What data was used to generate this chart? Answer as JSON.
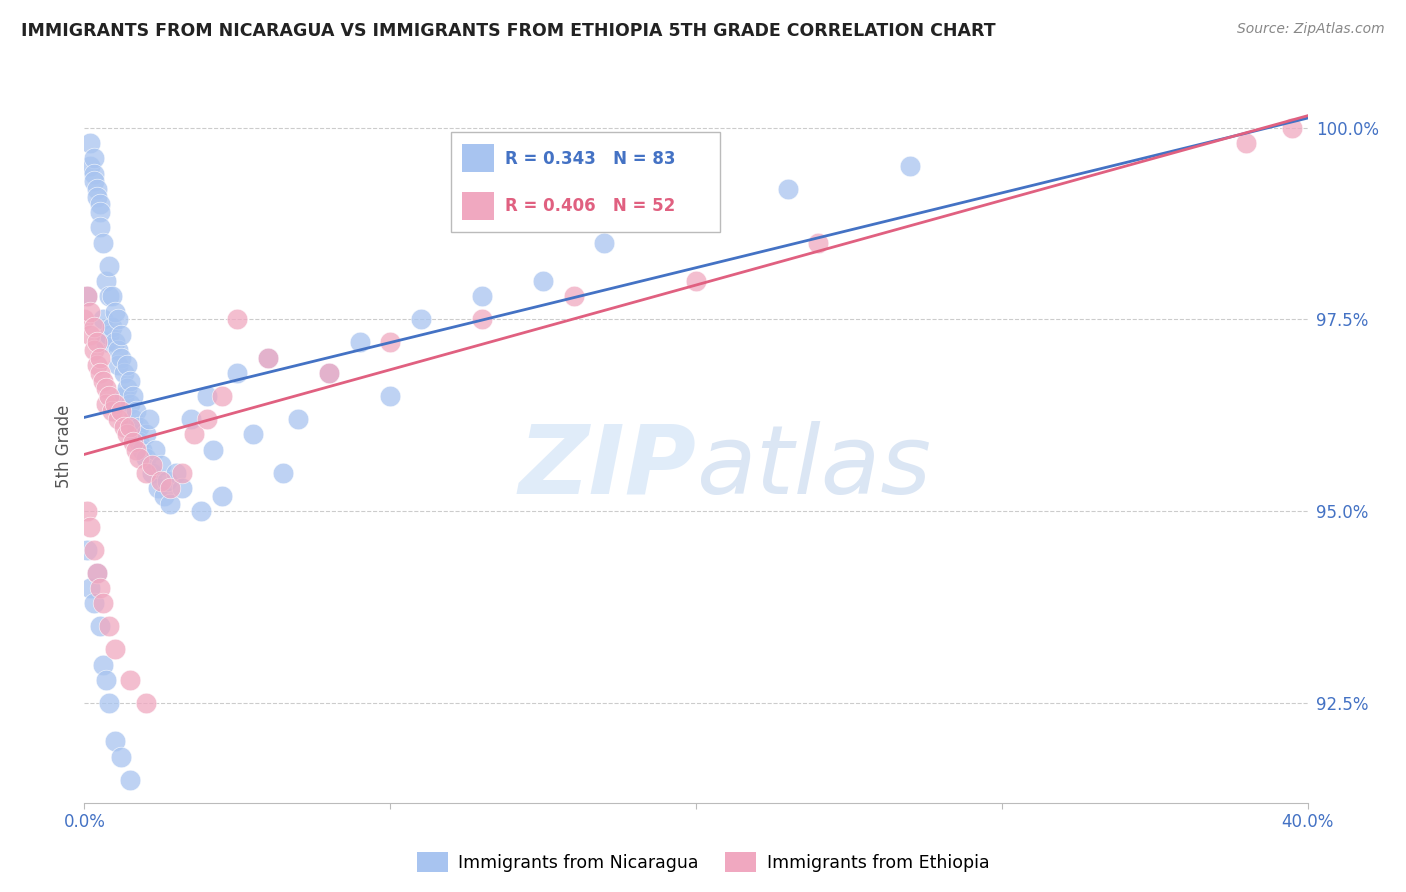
{
  "title": "IMMIGRANTS FROM NICARAGUA VS IMMIGRANTS FROM ETHIOPIA 5TH GRADE CORRELATION CHART",
  "source": "Source: ZipAtlas.com",
  "ylabel": "5th Grade",
  "xmin": 0.0,
  "xmax": 0.4,
  "ymin": 91.2,
  "ymax": 100.5,
  "legend_r1_color": "#4472c4",
  "legend_r2_color": "#e06080",
  "color_nicaragua": "#a8c4f0",
  "color_ethiopia": "#f0a8c0",
  "color_line_nicaragua": "#4472c4",
  "color_line_ethiopia": "#e06080",
  "color_axis_ticks": "#4472c4",
  "watermark_color": "#dae8f8",
  "nicaragua_x": [
    0.001,
    0.002,
    0.002,
    0.003,
    0.003,
    0.003,
    0.004,
    0.004,
    0.005,
    0.005,
    0.005,
    0.006,
    0.006,
    0.007,
    0.007,
    0.008,
    0.008,
    0.008,
    0.009,
    0.009,
    0.01,
    0.01,
    0.011,
    0.011,
    0.011,
    0.012,
    0.012,
    0.013,
    0.013,
    0.014,
    0.014,
    0.015,
    0.015,
    0.016,
    0.016,
    0.017,
    0.017,
    0.018,
    0.018,
    0.019,
    0.02,
    0.02,
    0.021,
    0.022,
    0.023,
    0.024,
    0.025,
    0.026,
    0.027,
    0.028,
    0.03,
    0.032,
    0.035,
    0.038,
    0.04,
    0.042,
    0.045,
    0.05,
    0.055,
    0.06,
    0.065,
    0.07,
    0.08,
    0.09,
    0.1,
    0.11,
    0.13,
    0.15,
    0.17,
    0.2,
    0.23,
    0.27,
    0.001,
    0.002,
    0.003,
    0.004,
    0.005,
    0.006,
    0.007,
    0.008,
    0.01,
    0.012,
    0.015
  ],
  "nicaragua_y": [
    97.8,
    99.8,
    99.5,
    99.6,
    99.4,
    99.3,
    99.2,
    99.1,
    99.0,
    98.9,
    98.7,
    98.5,
    97.5,
    98.0,
    97.2,
    98.2,
    97.8,
    97.3,
    97.8,
    97.4,
    97.6,
    97.2,
    97.5,
    97.1,
    96.9,
    97.3,
    97.0,
    96.8,
    96.5,
    96.9,
    96.6,
    96.7,
    96.4,
    96.5,
    96.2,
    96.3,
    96.0,
    96.1,
    95.9,
    95.8,
    96.0,
    95.7,
    96.2,
    95.5,
    95.8,
    95.3,
    95.6,
    95.2,
    95.4,
    95.1,
    95.5,
    95.3,
    96.2,
    95.0,
    96.5,
    95.8,
    95.2,
    96.8,
    96.0,
    97.0,
    95.5,
    96.2,
    96.8,
    97.2,
    96.5,
    97.5,
    97.8,
    98.0,
    98.5,
    99.0,
    99.2,
    99.5,
    94.5,
    94.0,
    93.8,
    94.2,
    93.5,
    93.0,
    92.8,
    92.5,
    92.0,
    91.8,
    91.5
  ],
  "ethiopia_x": [
    0.0,
    0.001,
    0.002,
    0.002,
    0.003,
    0.003,
    0.004,
    0.004,
    0.005,
    0.005,
    0.006,
    0.007,
    0.007,
    0.008,
    0.009,
    0.01,
    0.011,
    0.012,
    0.013,
    0.014,
    0.015,
    0.016,
    0.017,
    0.018,
    0.02,
    0.022,
    0.025,
    0.028,
    0.032,
    0.036,
    0.04,
    0.045,
    0.05,
    0.06,
    0.08,
    0.1,
    0.13,
    0.16,
    0.2,
    0.24,
    0.001,
    0.002,
    0.003,
    0.004,
    0.005,
    0.006,
    0.008,
    0.01,
    0.015,
    0.02,
    0.38,
    0.395
  ],
  "ethiopia_y": [
    97.5,
    97.8,
    97.3,
    97.6,
    97.4,
    97.1,
    97.2,
    96.9,
    97.0,
    96.8,
    96.7,
    96.6,
    96.4,
    96.5,
    96.3,
    96.4,
    96.2,
    96.3,
    96.1,
    96.0,
    96.1,
    95.9,
    95.8,
    95.7,
    95.5,
    95.6,
    95.4,
    95.3,
    95.5,
    96.0,
    96.2,
    96.5,
    97.5,
    97.0,
    96.8,
    97.2,
    97.5,
    97.8,
    98.0,
    98.5,
    95.0,
    94.8,
    94.5,
    94.2,
    94.0,
    93.8,
    93.5,
    93.2,
    92.8,
    92.5,
    99.8,
    100.0
  ]
}
